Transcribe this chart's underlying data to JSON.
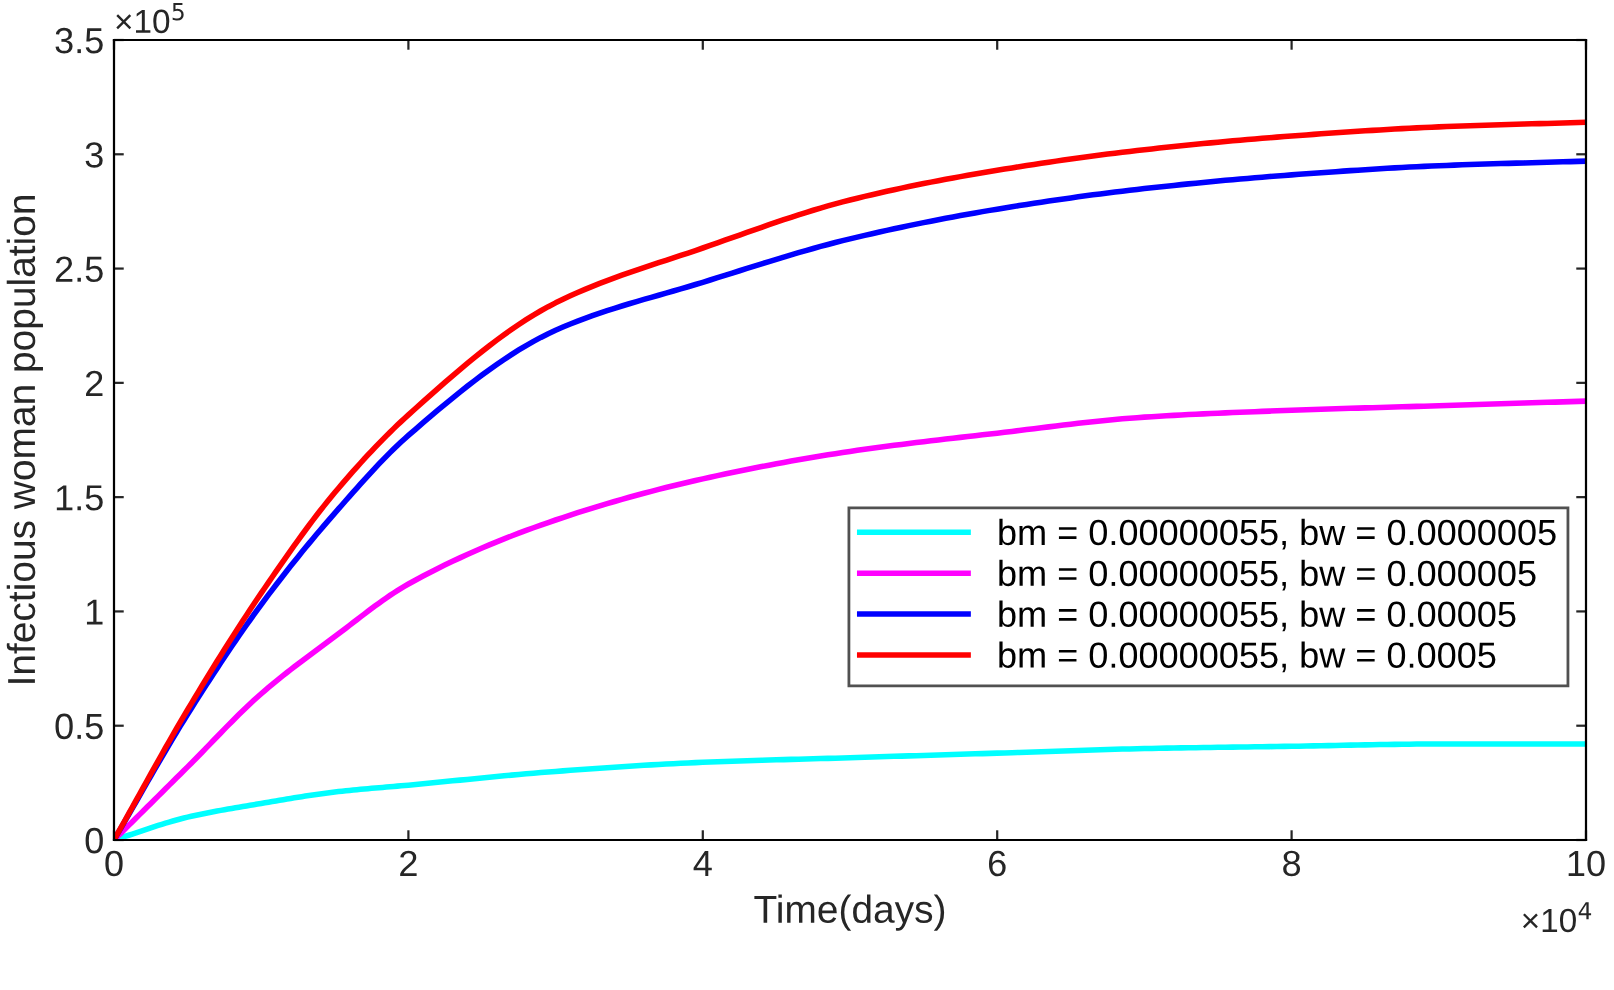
{
  "chart_data": {
    "type": "line",
    "xlabel": "Time(days)",
    "ylabel": "Infectious woman population",
    "x": [
      0,
      0.5,
      1,
      1.5,
      2,
      3,
      4,
      5,
      6,
      7,
      8,
      9,
      10
    ],
    "series": [
      {
        "name": "bm = 0.00000055, bw = 0.0000005",
        "color": "#00ffff",
        "values": [
          0,
          0.1,
          0.16,
          0.21,
          0.24,
          0.3,
          0.34,
          0.36,
          0.38,
          0.4,
          0.41,
          0.42,
          0.42
        ]
      },
      {
        "name": "bm = 0.00000055, bw = 0.000005",
        "color": "#ff00ff",
        "values": [
          0,
          0.32,
          0.64,
          0.89,
          1.12,
          1.4,
          1.58,
          1.7,
          1.78,
          1.85,
          1.88,
          1.9,
          1.92
        ]
      },
      {
        "name": "bm = 0.00000055, bw = 0.00005",
        "color": "#0000ff",
        "values": [
          0,
          0.55,
          1.03,
          1.43,
          1.77,
          2.23,
          2.44,
          2.63,
          2.76,
          2.85,
          2.91,
          2.95,
          2.97
        ]
      },
      {
        "name": "bm = 0.00000055, bw = 0.0005",
        "color": "#ff0000",
        "values": [
          0,
          0.57,
          1.08,
          1.52,
          1.86,
          2.35,
          2.59,
          2.8,
          2.93,
          3.02,
          3.08,
          3.12,
          3.14
        ]
      }
    ],
    "xlim": [
      0,
      10
    ],
    "ylim": [
      0,
      3.5
    ],
    "xticks": [
      0,
      2,
      4,
      6,
      8,
      10
    ],
    "yticks": [
      0,
      0.5,
      1,
      1.5,
      2,
      2.5,
      3,
      3.5
    ],
    "annotations": [
      "×10$^{4}$",
      "×10$^{5}$"
    ],
    "grid": false,
    "legend": "bottom right",
    "line_style": "solid",
    "marker": "none"
  }
}
